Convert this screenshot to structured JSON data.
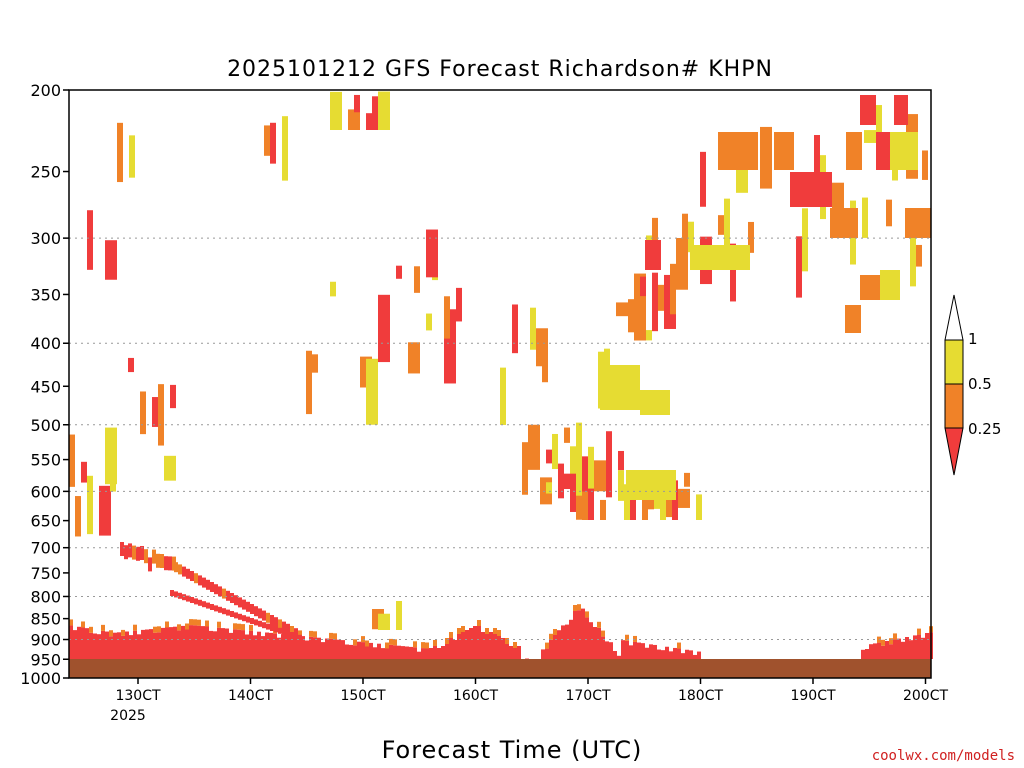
{
  "chart_data": {
    "type": "heatmap",
    "title": "2025101212 GFS Forecast Richardson# KHPN",
    "xlabel": "Forecast Time (UTC)",
    "credit": "coolwx.com/models",
    "x_ticks": [
      "130CT",
      "140CT",
      "150CT",
      "160CT",
      "170CT",
      "180CT",
      "190CT",
      "200CT"
    ],
    "x_year": "2025",
    "y_ticks": [
      200,
      250,
      300,
      350,
      400,
      450,
      500,
      550,
      600,
      650,
      700,
      750,
      800,
      850,
      900,
      950,
      1000
    ],
    "y_grid_levels": [
      300,
      400,
      500,
      600,
      700,
      800,
      900
    ],
    "y_scale": "log-pressure",
    "ylim": [
      1000,
      200
    ],
    "colorbar": {
      "levels": [
        "0.25",
        "0.5",
        "1"
      ],
      "colors": [
        "#f03c3c",
        "#f08228",
        "#e6dc32",
        "#ffffff"
      ]
    },
    "colors": {
      "red": "#f03c3c",
      "orange": "#f08228",
      "yellow": "#e6dc32",
      "ground": "#a0522d",
      "grid": "#999999"
    },
    "grid": true,
    "legend": "right"
  }
}
